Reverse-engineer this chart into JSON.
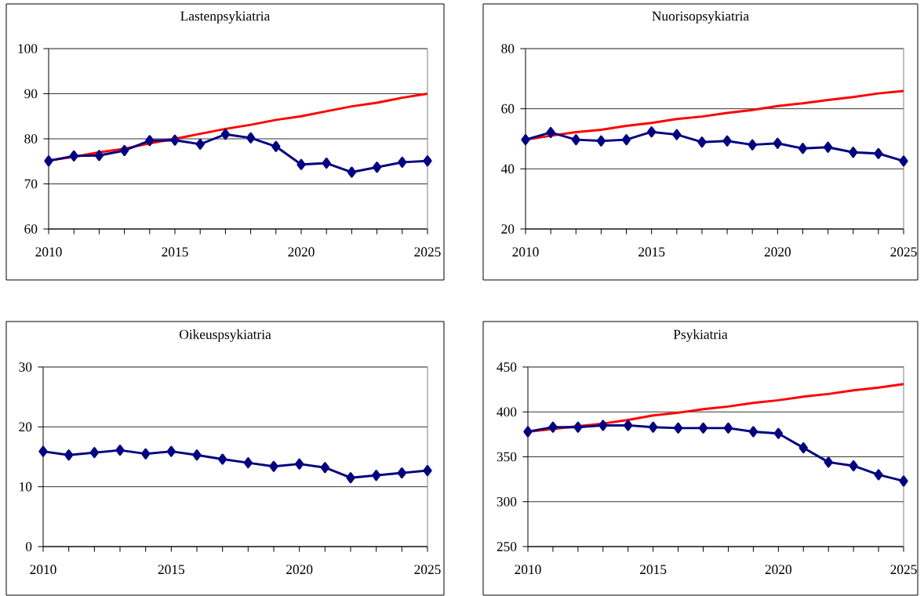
{
  "chart_data": [
    {
      "type": "line",
      "title": "Lastenpsykiatria",
      "x": [
        2010,
        2011,
        2012,
        2013,
        2014,
        2015,
        2016,
        2017,
        2018,
        2019,
        2020,
        2021,
        2022,
        2023,
        2024,
        2025
      ],
      "xlim": [
        2010,
        2025
      ],
      "xticks": [
        2010,
        {
          "value": 2011,
          "label": null
        },
        {
          "value": 2012,
          "label": null
        },
        {
          "value": 2013,
          "label": null
        },
        {
          "value": 2014,
          "label": null
        },
        2015,
        {
          "value": 2016,
          "label": null
        },
        {
          "value": 2017,
          "label": null
        },
        {
          "value": 2018,
          "label": null
        },
        {
          "value": 2019,
          "label": null
        },
        2020,
        {
          "value": 2021,
          "label": null
        },
        {
          "value": 2022,
          "label": null
        },
        {
          "value": 2023,
          "label": null
        },
        {
          "value": 2024,
          "label": null
        },
        2025
      ],
      "ylim": [
        60,
        100
      ],
      "yticks": [
        60,
        70,
        80,
        90,
        100
      ],
      "grid": "y",
      "line_style": "solid",
      "series": [
        {
          "color": "#ff0000",
          "marker": "none",
          "values": [
            75.2,
            76.0,
            77.0,
            77.8,
            79.0,
            80.0,
            81.1,
            82.2,
            83.1,
            84.2,
            85.0,
            86.1,
            87.2,
            88.0,
            89.1,
            90.0
          ]
        },
        {
          "color": "#000080",
          "marker": "diamond",
          "values": [
            75.1,
            76.2,
            76.3,
            77.4,
            79.6,
            79.7,
            78.8,
            81.0,
            80.2,
            78.3,
            74.3,
            74.6,
            72.6,
            73.7,
            74.8,
            75.1
          ]
        }
      ]
    },
    {
      "type": "line",
      "title": "Nuorisopsykiatria",
      "x": [
        2010,
        2011,
        2012,
        2013,
        2014,
        2015,
        2016,
        2017,
        2018,
        2019,
        2020,
        2021,
        2022,
        2023,
        2024,
        2025
      ],
      "xlim": [
        2010,
        2025
      ],
      "xticks": [
        2010,
        {
          "value": 2011,
          "label": null
        },
        {
          "value": 2012,
          "label": null
        },
        {
          "value": 2013,
          "label": null
        },
        {
          "value": 2014,
          "label": null
        },
        2015,
        {
          "value": 2016,
          "label": null
        },
        {
          "value": 2017,
          "label": null
        },
        {
          "value": 2018,
          "label": null
        },
        {
          "value": 2019,
          "label": null
        },
        2020,
        {
          "value": 2021,
          "label": null
        },
        {
          "value": 2022,
          "label": null
        },
        {
          "value": 2023,
          "label": null
        },
        {
          "value": 2024,
          "label": null
        },
        2025
      ],
      "ylim": [
        20,
        80
      ],
      "yticks": [
        20,
        40,
        60,
        80
      ],
      "grid": "y",
      "line_style": "solid",
      "series": [
        {
          "color": "#ff0000",
          "marker": "none",
          "values": [
            49.7,
            51.0,
            52.2,
            53.0,
            54.3,
            55.3,
            56.6,
            57.4,
            58.6,
            59.6,
            60.9,
            61.8,
            62.9,
            63.9,
            65.1,
            65.9
          ]
        },
        {
          "color": "#000080",
          "marker": "diamond",
          "values": [
            49.7,
            52.1,
            49.7,
            49.3,
            49.7,
            52.3,
            51.4,
            48.9,
            49.3,
            48.0,
            48.5,
            46.8,
            47.2,
            45.5,
            45.1,
            42.6
          ]
        }
      ]
    },
    {
      "type": "line",
      "title": "Oikeuspsykiatria",
      "x": [
        2010,
        2011,
        2012,
        2013,
        2014,
        2015,
        2016,
        2017,
        2018,
        2019,
        2020,
        2021,
        2022,
        2023,
        2024,
        2025
      ],
      "xlim": [
        2010,
        2025
      ],
      "xticks": [
        2010,
        {
          "value": 2011,
          "label": null
        },
        {
          "value": 2012,
          "label": null
        },
        {
          "value": 2013,
          "label": null
        },
        {
          "value": 2014,
          "label": null
        },
        2015,
        {
          "value": 2016,
          "label": null
        },
        {
          "value": 2017,
          "label": null
        },
        {
          "value": 2018,
          "label": null
        },
        {
          "value": 2019,
          "label": null
        },
        2020,
        {
          "value": 2021,
          "label": null
        },
        {
          "value": 2022,
          "label": null
        },
        {
          "value": 2023,
          "label": null
        },
        {
          "value": 2024,
          "label": null
        },
        2025
      ],
      "ylim": [
        0,
        30
      ],
      "yticks": [
        0,
        10,
        20,
        30
      ],
      "grid": "y",
      "line_style": "solid",
      "series": [
        {
          "color": "#000080",
          "marker": "diamond",
          "values": [
            15.9,
            15.3,
            15.7,
            16.1,
            15.5,
            15.9,
            15.3,
            14.6,
            14.0,
            13.4,
            13.8,
            13.2,
            11.5,
            11.9,
            12.3,
            12.7
          ]
        }
      ]
    },
    {
      "type": "line",
      "title": "Psykiatria",
      "x": [
        2010,
        2011,
        2012,
        2013,
        2014,
        2015,
        2016,
        2017,
        2018,
        2019,
        2020,
        2021,
        2022,
        2023,
        2024,
        2025
      ],
      "xlim": [
        2010,
        2025
      ],
      "xticks": [
        2010,
        {
          "value": 2011,
          "label": null
        },
        {
          "value": 2012,
          "label": null
        },
        {
          "value": 2013,
          "label": null
        },
        {
          "value": 2014,
          "label": null
        },
        2015,
        {
          "value": 2016,
          "label": null
        },
        {
          "value": 2017,
          "label": null
        },
        {
          "value": 2018,
          "label": null
        },
        {
          "value": 2019,
          "label": null
        },
        2020,
        {
          "value": 2021,
          "label": null
        },
        {
          "value": 2022,
          "label": null
        },
        {
          "value": 2023,
          "label": null
        },
        {
          "value": 2024,
          "label": null
        },
        2025
      ],
      "ylim": [
        250,
        450
      ],
      "yticks": [
        250,
        300,
        350,
        400,
        450
      ],
      "grid": "y",
      "line_style": "solid",
      "series": [
        {
          "color": "#ff0000",
          "marker": "none",
          "values": [
            378,
            381,
            384,
            387,
            391,
            396,
            399,
            403,
            406,
            410,
            413,
            417,
            420,
            424,
            427,
            431
          ]
        },
        {
          "color": "#000080",
          "marker": "diamond",
          "values": [
            378,
            383,
            383,
            385,
            385,
            383,
            382,
            382,
            382,
            378,
            376,
            360,
            344,
            340,
            330,
            323
          ]
        }
      ]
    }
  ]
}
